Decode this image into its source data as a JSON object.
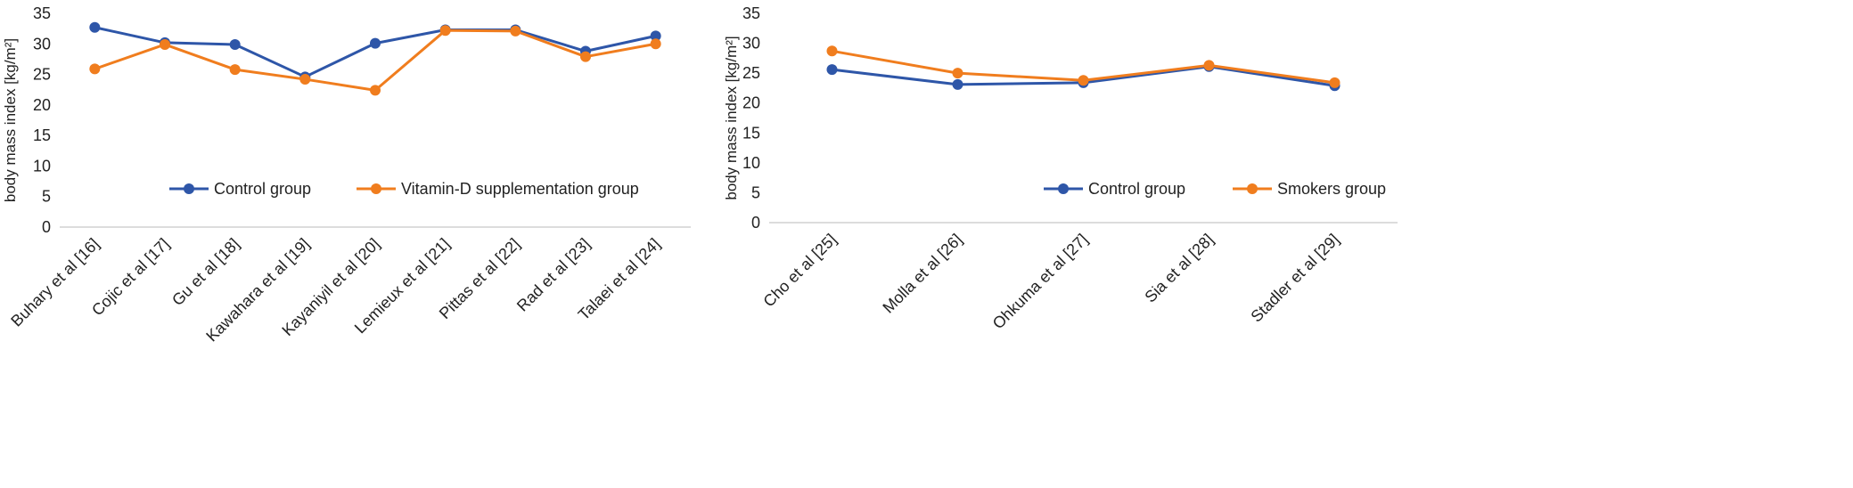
{
  "colors": {
    "control": "#2E56A8",
    "vitamin_d": "#F07D1E",
    "smokers": "#F07D1E",
    "axis": "#D0D0D0",
    "text": "#222222"
  },
  "chart_data": [
    {
      "type": "line",
      "ylabel": "body mass index [kg/m²]",
      "ylim": [
        0,
        35
      ],
      "yticks": [
        0,
        5,
        10,
        15,
        20,
        25,
        30,
        35
      ],
      "grid": false,
      "legend": "inside-middle",
      "categories": [
        "Buhary et al [16]",
        "Cojic et al [17]",
        "Gu et al [18]",
        "Kawahara et al [19]",
        "Kayaniyil et al [20]",
        "Lemieux et al [21]",
        "Pittas et al [22]",
        "Rad et al [23]",
        "Talaei et al [24]"
      ],
      "series": [
        {
          "name": "Control group",
          "color": "#2E56A8",
          "values": [
            32.7,
            30.2,
            29.9,
            24.6,
            30.1,
            32.3,
            32.3,
            28.8,
            31.3
          ]
        },
        {
          "name": "Vitamin-D supplementation  group",
          "color": "#F07D1E",
          "values": [
            25.9,
            29.9,
            25.8,
            24.2,
            22.4,
            32.2,
            32.1,
            27.9,
            30.0
          ]
        }
      ]
    },
    {
      "type": "line",
      "ylabel": "body mass index [kg/m²]",
      "ylim": [
        0,
        35
      ],
      "yticks": [
        0,
        5,
        10,
        15,
        20,
        25,
        30,
        35
      ],
      "grid": false,
      "legend": "inside-middle",
      "categories": [
        "Cho et al [25]",
        "Molla et al [26]",
        "Ohkuma et al [27]",
        "Sia et al [28]",
        "Stadler et al [29]"
      ],
      "series": [
        {
          "name": "Control group",
          "color": "#2E56A8",
          "values": [
            25.6,
            23.1,
            23.4,
            26.1,
            22.9
          ]
        },
        {
          "name": "Smokers group",
          "color": "#F07D1E",
          "values": [
            28.7,
            25.0,
            23.8,
            26.3,
            23.4
          ]
        }
      ]
    }
  ]
}
